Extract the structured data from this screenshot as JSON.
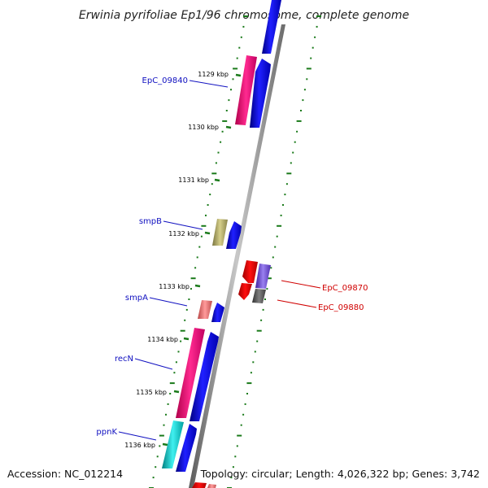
{
  "title": "Erwinia pyrifoliae Ep1/96 chromosome, complete genome",
  "footer": {
    "accession": "Accession: NC_012214",
    "summary": "Topology: circular; Length: 4,026,322 bp; Genes: 3,742"
  },
  "ticks": [
    "1129 kbp",
    "1130 kbp",
    "1131 kbp",
    "1132 kbp",
    "1133 kbp",
    "1134 kbp",
    "1135 kbp",
    "1136 kbp"
  ],
  "gene_labels": {
    "forward": [
      "EpC_09840",
      "smpB",
      "smpA",
      "recN",
      "ppnK"
    ],
    "reverse": [
      "EpC_09870",
      "EpC_09880"
    ]
  },
  "colors": {
    "forward_cds": "#0000ee",
    "reverse_cds": "#ee0000",
    "backbone": "#8c8c8c",
    "tick": "#1a7a1a",
    "label_forward": "#1010c0",
    "label_reverse": "#d00000"
  }
}
